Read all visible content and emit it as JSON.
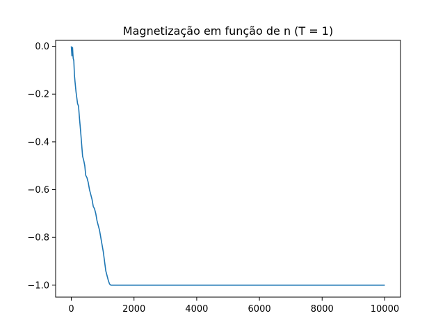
{
  "chart_data": {
    "type": "line",
    "title": "Magnetização em função de n (T = 1)",
    "xlabel": "",
    "ylabel": "",
    "xlim": [
      -500,
      10500
    ],
    "ylim": [
      -1.05,
      0.025
    ],
    "grid": false,
    "x_ticks": [
      0,
      2000,
      4000,
      6000,
      8000,
      10000
    ],
    "x_tick_labels": [
      "0",
      "2000",
      "4000",
      "6000",
      "8000",
      "10000"
    ],
    "y_ticks": [
      0.0,
      -0.2,
      -0.4,
      -0.6,
      -0.8,
      -1.0
    ],
    "y_tick_labels": [
      "0.0",
      "−0.2",
      "−0.4",
      "−0.6",
      "−0.8",
      "−1.0"
    ],
    "series": [
      {
        "color": "#1f77b4",
        "x": [
          0,
          10,
          20,
          30,
          40,
          50,
          60,
          80,
          100,
          120,
          150,
          180,
          200,
          230,
          260,
          300,
          330,
          360,
          400,
          430,
          460,
          500,
          540,
          580,
          620,
          660,
          700,
          740,
          780,
          820,
          860,
          900,
          940,
          980,
          1020,
          1060,
          1100,
          1140,
          1180,
          1220,
          1260,
          1300,
          1340,
          1380,
          1420,
          1500,
          2000,
          3000,
          4000,
          5000,
          6000,
          7000,
          8000,
          9000,
          10000
        ],
        "y": [
          0.0,
          -0.02,
          -0.04,
          -0.01,
          -0.005,
          -0.03,
          -0.05,
          -0.06,
          -0.12,
          -0.15,
          -0.19,
          -0.22,
          -0.24,
          -0.25,
          -0.3,
          -0.36,
          -0.41,
          -0.46,
          -0.48,
          -0.5,
          -0.54,
          -0.55,
          -0.57,
          -0.6,
          -0.62,
          -0.64,
          -0.67,
          -0.68,
          -0.7,
          -0.73,
          -0.75,
          -0.77,
          -0.8,
          -0.83,
          -0.86,
          -0.9,
          -0.94,
          -0.96,
          -0.98,
          -0.995,
          -1.0,
          -1.0,
          -1.0,
          -1.0,
          -1.0,
          -1.0,
          -1.0,
          -1.0,
          -1.0,
          -1.0,
          -1.0,
          -1.0,
          -1.0,
          -1.0,
          -1.0
        ]
      }
    ]
  }
}
